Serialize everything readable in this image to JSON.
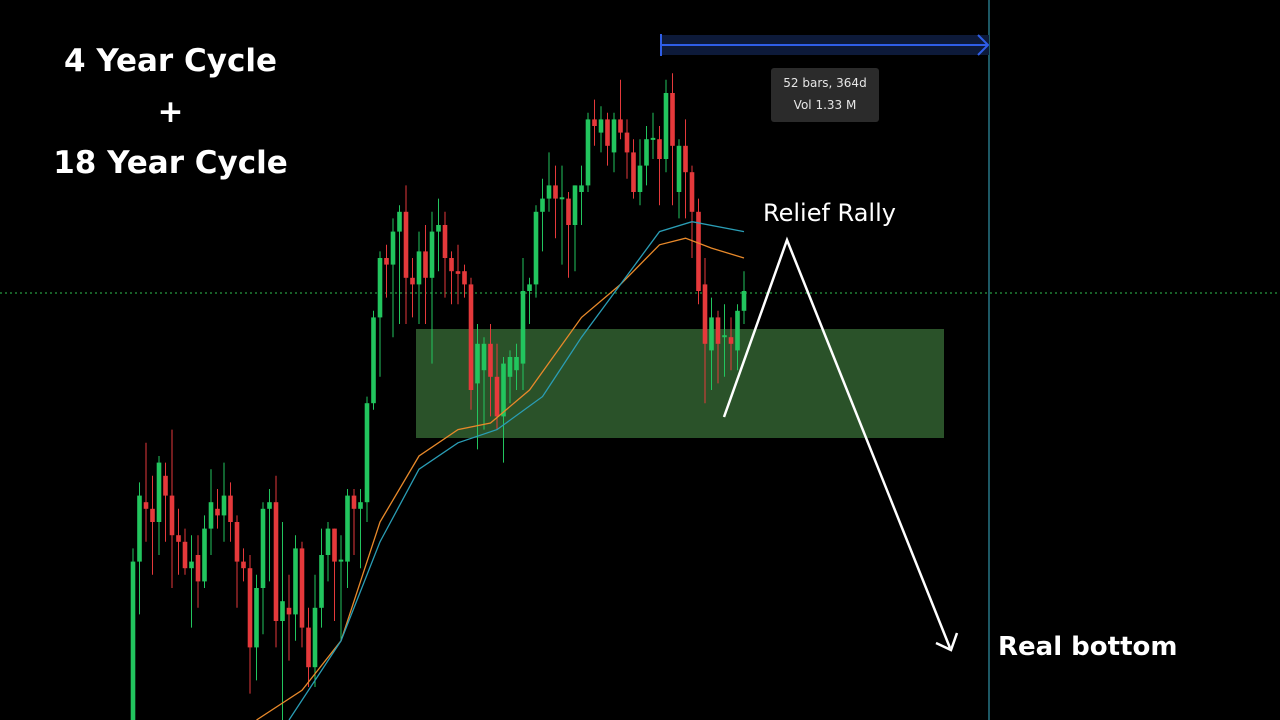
{
  "title": {
    "line1": "4 Year Cycle +",
    "line2": "18 Year Cycle"
  },
  "measure_tooltip": {
    "bars": "52 bars, 364d",
    "volume": "Vol 1.33 M"
  },
  "annotations": {
    "relief_rally": "Relief Rally",
    "real_bottom": "Real bottom"
  },
  "colors": {
    "up": "#22c55e",
    "down": "#e5393b",
    "ma_fast": "#e8892a",
    "ma_slow": "#2a9db5",
    "zone": "#2a5229",
    "measure": "#2f5ee8",
    "vline": "#3ab0c8",
    "price_line": "#2fbf4f",
    "arrow": "#ffffff"
  },
  "chart_data": {
    "type": "candlestick",
    "title": "",
    "xlabel": "",
    "ylabel": "",
    "ylim": [
      0,
      100
    ],
    "grid": false,
    "note_units": "relative price (no axis printed)",
    "candles_ohlc": [
      [
        0,
        26,
        0,
        24
      ],
      [
        24,
        36,
        16,
        34
      ],
      [
        33,
        42,
        27,
        32
      ],
      [
        32,
        37,
        22,
        30
      ],
      [
        30,
        40,
        25,
        39
      ],
      [
        37,
        39,
        27,
        34
      ],
      [
        34,
        44,
        20,
        28
      ],
      [
        28,
        32,
        22,
        27
      ],
      [
        27,
        29,
        22,
        23
      ],
      [
        23,
        28,
        14,
        24
      ],
      [
        25,
        28,
        17,
        21
      ],
      [
        21,
        31,
        20,
        29
      ],
      [
        29,
        38,
        25,
        33
      ],
      [
        32,
        35,
        29,
        31
      ],
      [
        31,
        39,
        27,
        34
      ],
      [
        34,
        36,
        27,
        30
      ],
      [
        30,
        31,
        17,
        24
      ],
      [
        24,
        26,
        21,
        23
      ],
      [
        23,
        25,
        4,
        11
      ],
      [
        11,
        22,
        6,
        20
      ],
      [
        20,
        33,
        13,
        32
      ],
      [
        32,
        35,
        21,
        33
      ],
      [
        33,
        37,
        11,
        15
      ],
      [
        15,
        30,
        0,
        18
      ],
      [
        17,
        22,
        9,
        16
      ],
      [
        16,
        28,
        12,
        26
      ],
      [
        26,
        27,
        11,
        14
      ],
      [
        14,
        17,
        5,
        8
      ],
      [
        8,
        22,
        5,
        17
      ],
      [
        17,
        29,
        14,
        25
      ],
      [
        25,
        30,
        21,
        29
      ],
      [
        29,
        29,
        15,
        24
      ],
      [
        24,
        28,
        12,
        24.3
      ],
      [
        24,
        35,
        20,
        34
      ],
      [
        34,
        35,
        25,
        32
      ],
      [
        32,
        35,
        23,
        33
      ],
      [
        33,
        49,
        30,
        48
      ],
      [
        48,
        62,
        47,
        61
      ],
      [
        61,
        71,
        52,
        70
      ],
      [
        70,
        72,
        64,
        69
      ],
      [
        69,
        76,
        58,
        74
      ],
      [
        74,
        78,
        60,
        77
      ],
      [
        77,
        81,
        60,
        67
      ],
      [
        67,
        70,
        61,
        66
      ],
      [
        66,
        74,
        60,
        71
      ],
      [
        71,
        75,
        60,
        67
      ],
      [
        67,
        77,
        54,
        74
      ],
      [
        74,
        79,
        68,
        75
      ],
      [
        75,
        77,
        64,
        70
      ],
      [
        70,
        71,
        63,
        68
      ],
      [
        68,
        72,
        63,
        67.6
      ],
      [
        68,
        69,
        64,
        66
      ],
      [
        66,
        67,
        47,
        50
      ],
      [
        51,
        60,
        41,
        57
      ],
      [
        53,
        58,
        44,
        57
      ],
      [
        57,
        60,
        46,
        52
      ],
      [
        52,
        57,
        44,
        46
      ],
      [
        46,
        55,
        39,
        54
      ],
      [
        52,
        56,
        48,
        55
      ],
      [
        53,
        57,
        50,
        55
      ],
      [
        54,
        70,
        50,
        65
      ],
      [
        65,
        67,
        60,
        66
      ],
      [
        66,
        78,
        64,
        77
      ],
      [
        77,
        82,
        71,
        79
      ],
      [
        79,
        86,
        77,
        81
      ],
      [
        81,
        84,
        73,
        79
      ],
      [
        79,
        84,
        69,
        79.2
      ],
      [
        79,
        80,
        67,
        75
      ],
      [
        75,
        81,
        68,
        81
      ],
      [
        80,
        84,
        75,
        81
      ],
      [
        81,
        92,
        80,
        91
      ],
      [
        91,
        94,
        87,
        90
      ],
      [
        89,
        93,
        86,
        91
      ],
      [
        91,
        92,
        84,
        87
      ],
      [
        86,
        92,
        83,
        91
      ],
      [
        91,
        97,
        88,
        89
      ],
      [
        89,
        91,
        82,
        86
      ],
      [
        86,
        88,
        79,
        80
      ],
      [
        80,
        88,
        78,
        84
      ],
      [
        84,
        90,
        81,
        88
      ],
      [
        88,
        92,
        85,
        88.2
      ],
      [
        88,
        90,
        78,
        85
      ],
      [
        85,
        97,
        83,
        95
      ],
      [
        95,
        98,
        78,
        87
      ],
      [
        80,
        88,
        76,
        87
      ],
      [
        87,
        91,
        76,
        83
      ],
      [
        83,
        84,
        70,
        77
      ],
      [
        77,
        79,
        63,
        65
      ],
      [
        66,
        70,
        48,
        57
      ],
      [
        56,
        64,
        50,
        61
      ],
      [
        61,
        62,
        51,
        57
      ],
      [
        58,
        63,
        52,
        58.3
      ],
      [
        58,
        61,
        53,
        57
      ],
      [
        56,
        63,
        53,
        62
      ],
      [
        62,
        68,
        60,
        65
      ]
    ],
    "series": [
      {
        "type": "line",
        "points": [
          [
            19,
            0
          ],
          [
            26,
            4.5
          ],
          [
            32,
            12
          ],
          [
            38,
            30
          ],
          [
            44,
            40
          ],
          [
            50,
            44
          ],
          [
            55,
            45
          ],
          [
            61,
            50
          ],
          [
            69,
            61
          ],
          [
            75,
            66
          ],
          [
            81,
            72
          ],
          [
            85,
            73
          ],
          [
            89,
            71.5
          ],
          [
            94,
            70
          ]
        ]
      },
      {
        "type": "line",
        "points": [
          [
            24,
            0
          ],
          [
            32,
            12
          ],
          [
            38,
            27
          ],
          [
            44,
            38
          ],
          [
            50,
            42
          ],
          [
            56,
            44
          ],
          [
            63,
            49
          ],
          [
            69,
            58
          ],
          [
            75,
            66
          ],
          [
            81,
            74
          ],
          [
            86,
            75.5
          ],
          [
            94,
            74
          ]
        ]
      }
    ],
    "current_price": 64.7,
    "support_zone": [
      43,
      59
    ]
  }
}
